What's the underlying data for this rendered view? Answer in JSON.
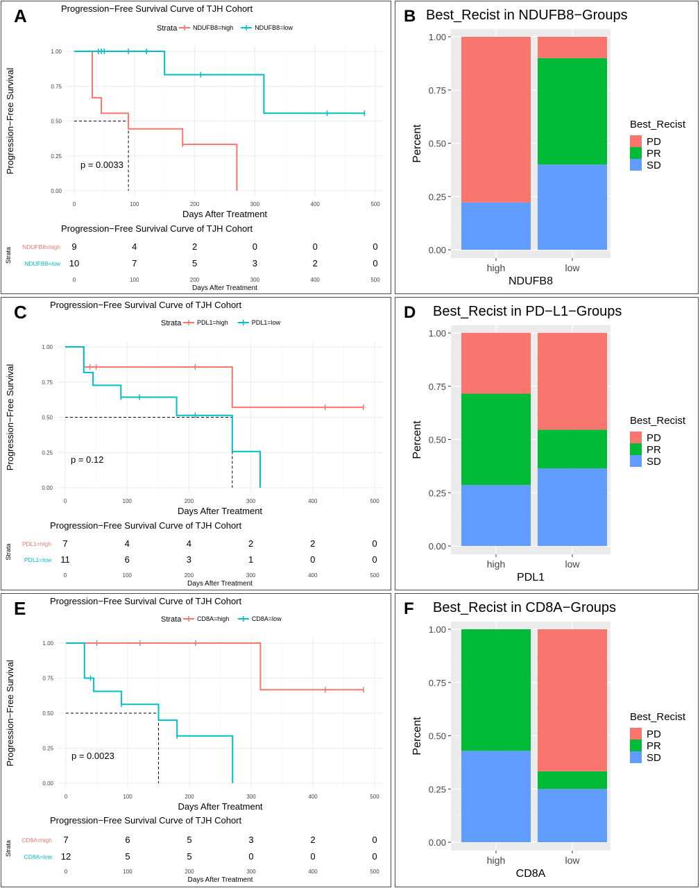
{
  "colors": {
    "high": "#F8766D",
    "low": "#00BFC4",
    "PD": "#F8766D",
    "PR": "#00BA38",
    "SD": "#619CFF",
    "panel_bg": "#EBEBEB"
  },
  "km_common": {
    "title": "Progression−Free Survival Curve of TJH Cohort",
    "ylabel": "Progression−Free Survival",
    "xlabel": "Days After Treatment",
    "legend_title": "Strata",
    "y_ticks": [
      "0.00",
      "0.25",
      "0.50",
      "0.75",
      "1.00"
    ],
    "x_ticks": [
      "0",
      "100",
      "200",
      "300",
      "400",
      "500"
    ],
    "risk_title": "Progression−Free Survival Curve of TJH Cohort",
    "risk_strata_label": "Strata",
    "risk_xlabel": "Days After Treatment"
  },
  "bar_common": {
    "ylabel": "Percent",
    "legend_title": "Best_Recist",
    "y_ticks": [
      "0.00",
      "0.25",
      "0.50",
      "0.75",
      "1.00"
    ],
    "categories": [
      "high",
      "low"
    ],
    "legend_items": [
      "PD",
      "PR",
      "SD"
    ]
  },
  "panels": {
    "A": {
      "letter": "A",
      "pval": "p = 0.0033",
      "high_label": "NDUFB8=high",
      "low_label": "NDUFB8=low"
    },
    "B": {
      "letter": "B",
      "title": "Best_Recist in NDUFB8−Groups",
      "xlabel": "NDUFB8"
    },
    "C": {
      "letter": "C",
      "pval": "p = 0.12",
      "high_label": "PDL1=high",
      "low_label": "PDL1=low"
    },
    "D": {
      "letter": "D",
      "title": "Best_Recist in PD−L1−Groups",
      "xlabel": "PDL1"
    },
    "E": {
      "letter": "E",
      "pval": "p = 0.0023",
      "high_label": "CD8A=high",
      "low_label": "CD8A=low"
    },
    "F": {
      "letter": "F",
      "title": "Best_Recist in CD8A−Groups",
      "xlabel": "CD8A"
    }
  },
  "chart_data": [
    {
      "panel": "A",
      "type": "line",
      "xlim": [
        0,
        500
      ],
      "ylim": [
        0,
        1
      ],
      "series": [
        {
          "name": "NDUFB8=high",
          "steps": [
            [
              0,
              1
            ],
            [
              30,
              1
            ],
            [
              30,
              0.667
            ],
            [
              45,
              0.667
            ],
            [
              45,
              0.556
            ],
            [
              90,
              0.556
            ],
            [
              90,
              0.444
            ],
            [
              180,
              0.444
            ],
            [
              180,
              0.333
            ],
            [
              270,
              0.333
            ],
            [
              270,
              0
            ]
          ],
          "censor": [
            [
              180,
              0.333
            ]
          ]
        },
        {
          "name": "NDUFB8=low",
          "steps": [
            [
              0,
              1
            ],
            [
              150,
              1
            ],
            [
              150,
              0.833
            ],
            [
              315,
              0.833
            ],
            [
              315,
              0.556
            ],
            [
              482,
              0.556
            ]
          ],
          "censor": [
            [
              40,
              1
            ],
            [
              45,
              1
            ],
            [
              50,
              1
            ],
            [
              90,
              1
            ],
            [
              120,
              1
            ],
            [
              210,
              0.833
            ],
            [
              420,
              0.556
            ],
            [
              482,
              0.556
            ]
          ]
        }
      ],
      "median": {
        "y": 0.5,
        "x": 90
      },
      "risk_table": {
        "high": [
          "9",
          "4",
          "2",
          "0",
          "0",
          "0"
        ],
        "low": [
          "10",
          "7",
          "5",
          "3",
          "2",
          "0"
        ]
      }
    },
    {
      "panel": "B",
      "type": "bar",
      "categories": [
        "high",
        "low"
      ],
      "ylim": [
        0,
        1
      ],
      "series": [
        {
          "name": "PD",
          "values": [
            0.778,
            0.1
          ]
        },
        {
          "name": "PR",
          "values": [
            0,
            0.5
          ]
        },
        {
          "name": "SD",
          "values": [
            0.222,
            0.4
          ]
        }
      ]
    },
    {
      "panel": "C",
      "type": "line",
      "xlim": [
        0,
        500
      ],
      "ylim": [
        0,
        1
      ],
      "series": [
        {
          "name": "PDL1=high",
          "steps": [
            [
              0,
              1
            ],
            [
              30,
              1
            ],
            [
              30,
              0.857
            ],
            [
              270,
              0.857
            ],
            [
              270,
              0.571
            ],
            [
              482,
              0.571
            ]
          ],
          "censor": [
            [
              40,
              0.857
            ],
            [
              50,
              0.857
            ],
            [
              210,
              0.857
            ],
            [
              420,
              0.571
            ],
            [
              482,
              0.571
            ]
          ]
        },
        {
          "name": "PDL1=low",
          "steps": [
            [
              0,
              1
            ],
            [
              30,
              1
            ],
            [
              30,
              0.818
            ],
            [
              45,
              0.818
            ],
            [
              45,
              0.727
            ],
            [
              90,
              0.727
            ],
            [
              90,
              0.643
            ],
            [
              180,
              0.643
            ],
            [
              180,
              0.514
            ],
            [
              270,
              0.514
            ],
            [
              270,
              0.257
            ],
            [
              315,
              0.257
            ],
            [
              315,
              0
            ]
          ],
          "censor": [
            [
              90,
              0.643
            ],
            [
              120,
              0.643
            ],
            [
              210,
              0.514
            ]
          ]
        }
      ],
      "median": {
        "y": 0.5,
        "x": 270
      },
      "risk_table": {
        "high": [
          "7",
          "4",
          "4",
          "2",
          "2",
          "0"
        ],
        "low": [
          "11",
          "6",
          "3",
          "1",
          "0",
          "0"
        ]
      }
    },
    {
      "panel": "D",
      "type": "bar",
      "categories": [
        "high",
        "low"
      ],
      "ylim": [
        0,
        1
      ],
      "series": [
        {
          "name": "PD",
          "values": [
            0.286,
            0.455
          ]
        },
        {
          "name": "PR",
          "values": [
            0.429,
            0.182
          ]
        },
        {
          "name": "SD",
          "values": [
            0.286,
            0.364
          ]
        }
      ]
    },
    {
      "panel": "E",
      "type": "line",
      "xlim": [
        0,
        500
      ],
      "ylim": [
        0,
        1
      ],
      "series": [
        {
          "name": "CD8A=high",
          "steps": [
            [
              0,
              1
            ],
            [
              315,
              1
            ],
            [
              315,
              0.667
            ],
            [
              482,
              0.667
            ]
          ],
          "censor": [
            [
              50,
              1
            ],
            [
              120,
              1
            ],
            [
              210,
              1
            ],
            [
              420,
              0.667
            ],
            [
              482,
              0.667
            ]
          ]
        },
        {
          "name": "CD8A=low",
          "steps": [
            [
              0,
              1
            ],
            [
              30,
              1
            ],
            [
              30,
              0.75
            ],
            [
              45,
              0.75
            ],
            [
              45,
              0.656
            ],
            [
              90,
              0.656
            ],
            [
              90,
              0.563
            ],
            [
              150,
              0.563
            ],
            [
              150,
              0.45
            ],
            [
              180,
              0.45
            ],
            [
              180,
              0.338
            ],
            [
              270,
              0.338
            ],
            [
              270,
              0
            ]
          ],
          "censor": [
            [
              40,
              0.75
            ],
            [
              90,
              0.563
            ],
            [
              180,
              0.338
            ]
          ]
        }
      ],
      "median": {
        "y": 0.5,
        "x": 150
      },
      "risk_table": {
        "high": [
          "7",
          "6",
          "5",
          "3",
          "2",
          "0"
        ],
        "low": [
          "12",
          "5",
          "5",
          "0",
          "0",
          "0"
        ]
      }
    },
    {
      "panel": "F",
      "type": "bar",
      "categories": [
        "high",
        "low"
      ],
      "ylim": [
        0,
        1
      ],
      "series": [
        {
          "name": "PD",
          "values": [
            0,
            0.667
          ]
        },
        {
          "name": "PR",
          "values": [
            0.571,
            0.083
          ]
        },
        {
          "name": "SD",
          "values": [
            0.429,
            0.25
          ]
        }
      ]
    }
  ]
}
